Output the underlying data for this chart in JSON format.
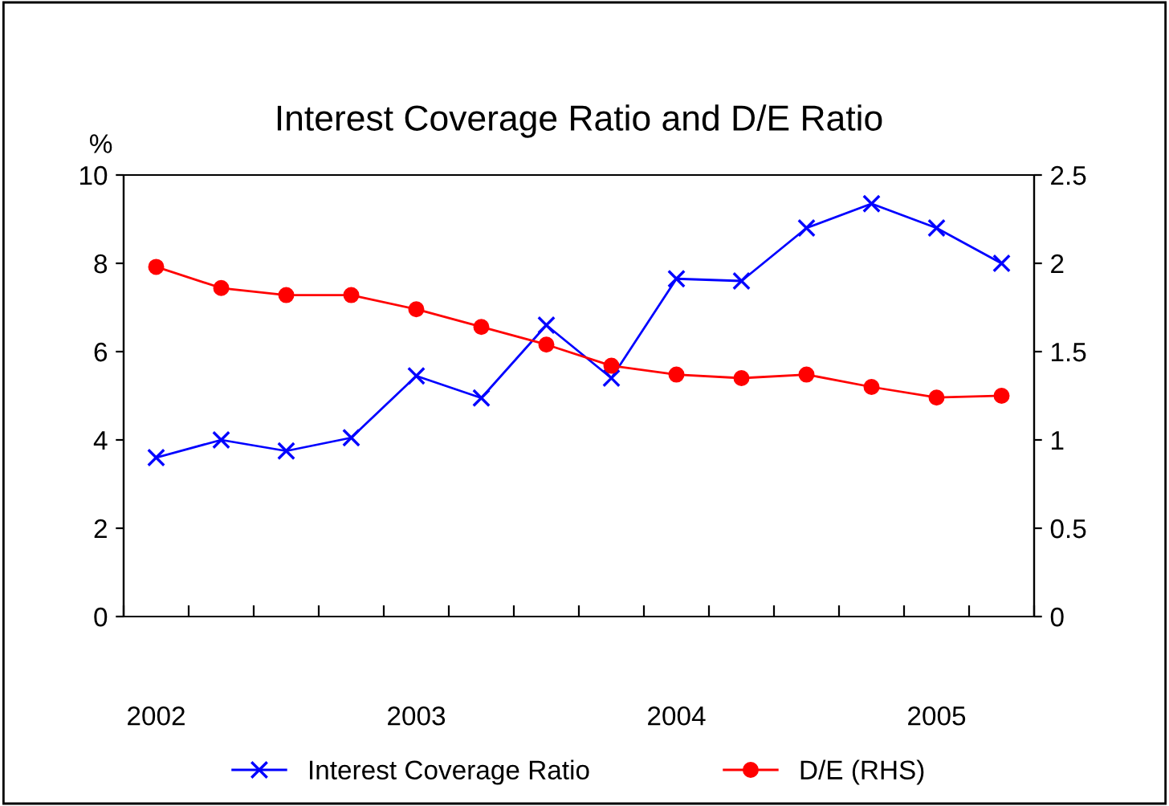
{
  "chart_data": {
    "type": "line",
    "title": "Interest Coverage Ratio and D/E Ratio",
    "ylabel": "%",
    "categories": [
      "2002",
      null,
      null,
      null,
      "2003",
      null,
      null,
      null,
      "2004",
      null,
      null,
      null,
      "2005",
      null
    ],
    "series": [
      {
        "name": "Interest Coverage Ratio",
        "color": "#0000ff",
        "marker": "cross",
        "values": [
          3.6,
          4.0,
          3.75,
          4.05,
          5.45,
          4.95,
          6.6,
          5.4,
          7.65,
          7.6,
          8.8,
          9.35,
          8.8,
          8.0
        ]
      },
      {
        "name": "D/E (RHS)",
        "color": "#ff0000",
        "marker": "circle",
        "axis": "y2",
        "values": [
          1.98,
          1.86,
          1.82,
          1.82,
          1.74,
          1.64,
          1.54,
          1.42,
          1.37,
          1.35,
          1.37,
          1.3,
          1.24,
          1.25
        ]
      }
    ],
    "ylim": [
      0,
      10
    ],
    "yticks": [
      0,
      2,
      4,
      6,
      8,
      10
    ],
    "y2lim": [
      0,
      2.5
    ],
    "y2ticks": [
      0,
      0.5,
      1,
      1.5,
      2,
      2.5
    ],
    "grid": false,
    "legend": "bottom",
    "line_style": "solid"
  }
}
